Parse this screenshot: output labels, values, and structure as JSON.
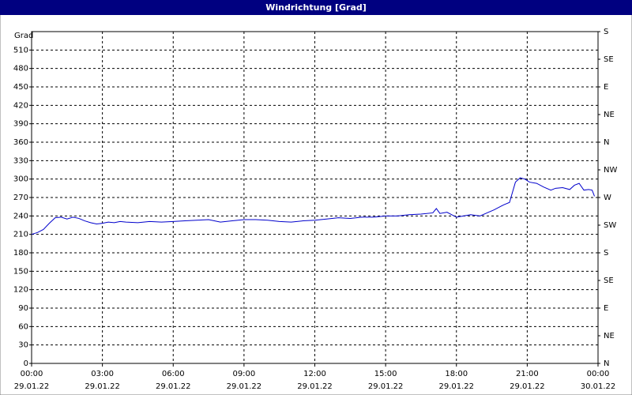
{
  "chart_data": {
    "type": "line",
    "title": "Windrichtung [Grad]",
    "y_label": "Grad",
    "xlim": [
      0,
      24
    ],
    "xticks": [
      {
        "value": 0,
        "label": "00:00"
      },
      {
        "value": 3,
        "label": "03:00"
      },
      {
        "value": 6,
        "label": "06:00"
      },
      {
        "value": 9,
        "label": "09:00"
      },
      {
        "value": 12,
        "label": "12:00"
      },
      {
        "value": 15,
        "label": "15:00"
      },
      {
        "value": 18,
        "label": "18:00"
      },
      {
        "value": 21,
        "label": "21:00"
      },
      {
        "value": 24,
        "label": "00:00"
      }
    ],
    "xtick_dates": [
      "29.01.22",
      "29.01.22",
      "29.01.22",
      "29.01.22",
      "29.01.22",
      "29.01.22",
      "29.01.22",
      "29.01.22",
      "30.01.22"
    ],
    "ylim": [
      0,
      540
    ],
    "yticks": [
      0,
      30,
      60,
      90,
      120,
      150,
      180,
      210,
      240,
      270,
      300,
      330,
      360,
      390,
      420,
      450,
      480,
      510
    ],
    "y2lim": [
      0,
      540
    ],
    "y2ticks": [
      {
        "value": 0,
        "label": "N"
      },
      {
        "value": 45,
        "label": "NE"
      },
      {
        "value": 90,
        "label": "E"
      },
      {
        "value": 135,
        "label": "SE"
      },
      {
        "value": 180,
        "label": "S"
      },
      {
        "value": 225,
        "label": "SW"
      },
      {
        "value": 270,
        "label": "W"
      },
      {
        "value": 315,
        "label": "NW"
      },
      {
        "value": 360,
        "label": "N"
      },
      {
        "value": 405,
        "label": "NE"
      },
      {
        "value": 450,
        "label": "E"
      },
      {
        "value": 495,
        "label": "SE"
      },
      {
        "value": 540,
        "label": "S"
      }
    ],
    "grid": true,
    "series": [
      {
        "color": "#0000cc",
        "x": [
          0,
          0.25,
          0.5,
          0.75,
          1.0,
          1.25,
          1.5,
          1.75,
          2.0,
          2.25,
          2.5,
          2.75,
          3.0,
          3.25,
          3.5,
          3.75,
          4.0,
          4.5,
          5.0,
          5.5,
          6.0,
          6.5,
          7.0,
          7.5,
          8.0,
          8.5,
          9.0,
          9.5,
          10.0,
          10.5,
          11.0,
          11.5,
          12.0,
          12.5,
          13.0,
          13.5,
          14.0,
          14.5,
          15.0,
          15.5,
          16.0,
          16.5,
          17.0,
          17.15,
          17.3,
          17.6,
          18.0,
          18.3,
          18.6,
          19.0,
          19.3,
          19.6,
          20.0,
          20.25,
          20.5,
          20.7,
          20.9,
          21.1,
          21.4,
          21.7,
          22.0,
          22.2,
          22.5,
          22.8,
          23.0,
          23.2,
          23.4,
          23.6,
          23.75,
          23.85
        ],
        "values": [
          210,
          213,
          218,
          228,
          237,
          238,
          235,
          238,
          236,
          232,
          229,
          227,
          228,
          230,
          229,
          231,
          230,
          229,
          231,
          230,
          231,
          232,
          233,
          234,
          230,
          232,
          234,
          234,
          233,
          231,
          230,
          232,
          233,
          235,
          237,
          236,
          238,
          238,
          240,
          240,
          242,
          243,
          245,
          252,
          244,
          246,
          238,
          240,
          242,
          240,
          245,
          250,
          258,
          262,
          295,
          302,
          300,
          295,
          293,
          287,
          282,
          285,
          286,
          283,
          290,
          293,
          282,
          283,
          282,
          272
        ]
      }
    ]
  }
}
